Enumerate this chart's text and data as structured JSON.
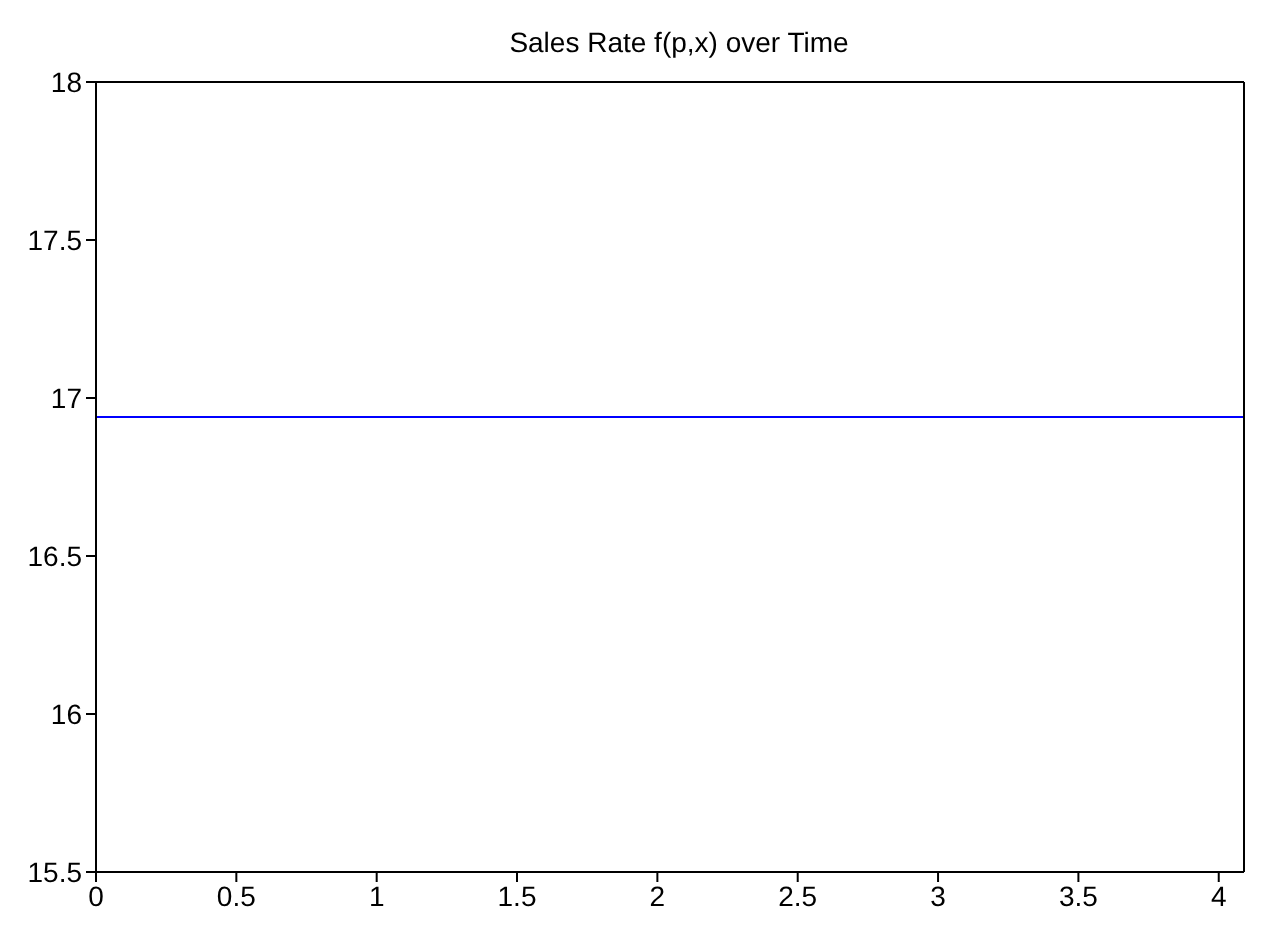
{
  "chart_data": {
    "type": "line",
    "title": "Sales Rate f(p,x) over Time",
    "x": [
      0,
      4.09
    ],
    "series": [
      {
        "color": "#0000ff",
        "values": [
          16.94,
          16.94
        ]
      }
    ],
    "xlim": [
      0,
      4.09
    ],
    "xticks": [
      0,
      0.5,
      1,
      1.5,
      2,
      2.5,
      3,
      3.5,
      4
    ],
    "ylim": [
      15.5,
      18
    ],
    "yticks": [
      15.5,
      16,
      16.5,
      17,
      17.5,
      18
    ],
    "legend": false,
    "marker": "none",
    "line_style": "solid"
  }
}
